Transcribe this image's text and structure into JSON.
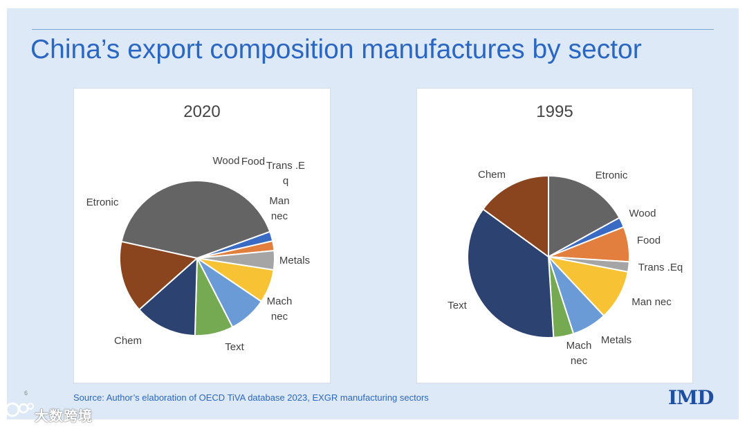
{
  "title": "China’s export composition manufactures by sector",
  "source": "Source: Author’s elaboration of OECD   TiVA database 2023, EXGR manufacturing sectors",
  "logo": "IMD",
  "page_number": "6",
  "watermark": "大数跨境",
  "colors": {
    "Etronic": "#646464",
    "Wood": "#3a6bc4",
    "Food": "#e27f3f",
    "Trans .Eq": "#a5a5a5",
    "Man nec": "#f7c234",
    "Metals": "#6b9bd6",
    "Mach nec": "#76aa52",
    "Text": "#2c4270",
    "Chem": "#8b451e"
  },
  "chart_data": [
    {
      "type": "pie",
      "title": "2020",
      "start_angle_deg": 70,
      "slices": [
        {
          "label": "Wood",
          "display": [
            "Wood"
          ],
          "value": 2
        },
        {
          "label": "Food",
          "display": [
            "Food"
          ],
          "value": 2
        },
        {
          "label": "Trans .Eq",
          "display": [
            "Trans .E",
            "q"
          ],
          "value": 4
        },
        {
          "label": "Man nec",
          "display": [
            "Man",
            "nec"
          ],
          "value": 7
        },
        {
          "label": "Metals",
          "display": [
            "Metals"
          ],
          "value": 8
        },
        {
          "label": "Mach nec",
          "display": [
            "Mach",
            "nec"
          ],
          "value": 8
        },
        {
          "label": "Text",
          "display": [
            "Text"
          ],
          "value": 13
        },
        {
          "label": "Chem",
          "display": [
            "Chem"
          ],
          "value": 15
        },
        {
          "label": "Etronic",
          "display": [
            "Etronic"
          ],
          "value": 41
        }
      ]
    },
    {
      "type": "pie",
      "title": "1995",
      "start_angle_deg": 0,
      "slices": [
        {
          "label": "Etronic",
          "display": [
            "Etronic"
          ],
          "value": 17
        },
        {
          "label": "Wood",
          "display": [
            "Wood"
          ],
          "value": 2
        },
        {
          "label": "Food",
          "display": [
            "Food"
          ],
          "value": 7
        },
        {
          "label": "Trans .Eq",
          "display": [
            "Trans .Eq"
          ],
          "value": 2
        },
        {
          "label": "Man nec",
          "display": [
            "Man nec"
          ],
          "value": 10
        },
        {
          "label": "Metals",
          "display": [
            "Metals"
          ],
          "value": 7
        },
        {
          "label": "Mach nec",
          "display": [
            "Mach",
            "nec"
          ],
          "value": 4
        },
        {
          "label": "Text",
          "display": [
            "Text"
          ],
          "value": 36
        },
        {
          "label": "Chem",
          "display": [
            "Chem"
          ],
          "value": 15
        }
      ]
    }
  ]
}
